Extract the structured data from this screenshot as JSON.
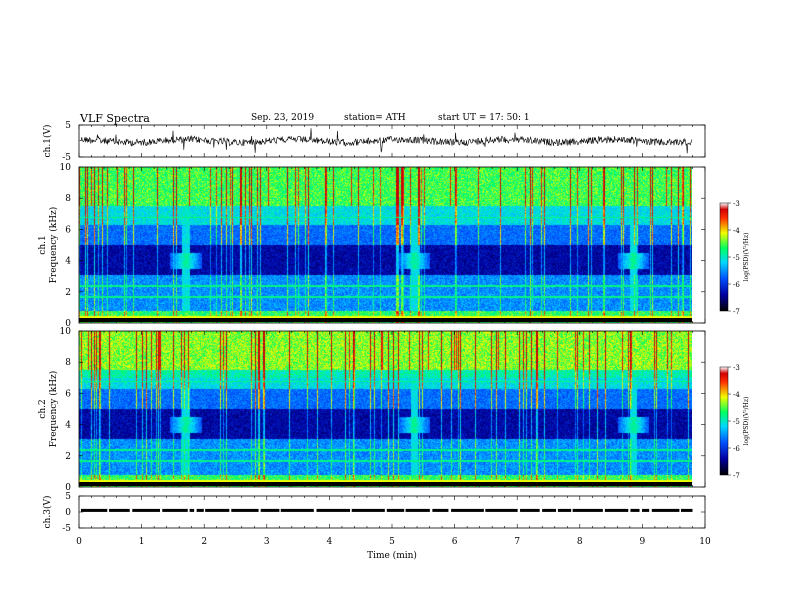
{
  "header": {
    "title": "VLF  Spectra",
    "date": "Sep. 23, 2019",
    "station": "station= ATH",
    "start": "start  UT  =    17: 50: 1"
  },
  "chart_data": [
    {
      "type": "line",
      "name": "ch1-waveform",
      "ylabel": "ch.1(V)",
      "ylim": [
        -5,
        5
      ],
      "yticks": [
        5,
        -5
      ],
      "xlim": [
        0,
        10
      ],
      "description_values": "noise trace around 0 V with spikes, extends to ~9.8 min"
    },
    {
      "type": "heatmap",
      "name": "ch1-spectrogram",
      "ylabel_top": "ch.1",
      "ylabel": "Frequency  (kHz)",
      "ylim": [
        0,
        10
      ],
      "yticks": [
        0,
        2,
        4,
        6,
        8,
        10
      ],
      "xlim": [
        0,
        10
      ],
      "data_extent_min": 9.8,
      "colorbar": {
        "label": "log(PSD)(V²/Hz)",
        "range": [
          -7,
          -3
        ],
        "ticks": [
          -3,
          -4,
          -5,
          -6,
          -7
        ]
      }
    },
    {
      "type": "heatmap",
      "name": "ch2-spectrogram",
      "ylabel_top": "ch.2",
      "ylabel": "Frequency  (kHz)",
      "ylim": [
        0,
        10
      ],
      "yticks": [
        0,
        2,
        4,
        6,
        8,
        10
      ],
      "xlim": [
        0,
        10
      ],
      "data_extent_min": 9.8,
      "colorbar": {
        "label": "log(PSD)(V²/Hz)",
        "range": [
          -7,
          -3
        ],
        "ticks": [
          -3,
          -4,
          -5,
          -6,
          -7
        ]
      }
    },
    {
      "type": "line",
      "name": "ch3-trace",
      "ylabel": "ch.3(V)",
      "ylim": [
        -5,
        5
      ],
      "yticks": [
        5,
        0,
        -5
      ],
      "xlim": [
        0,
        10
      ],
      "xlabel": "Time  (min)",
      "xticks": [
        0,
        1,
        2,
        3,
        4,
        5,
        6,
        7,
        8,
        9,
        10
      ]
    }
  ]
}
